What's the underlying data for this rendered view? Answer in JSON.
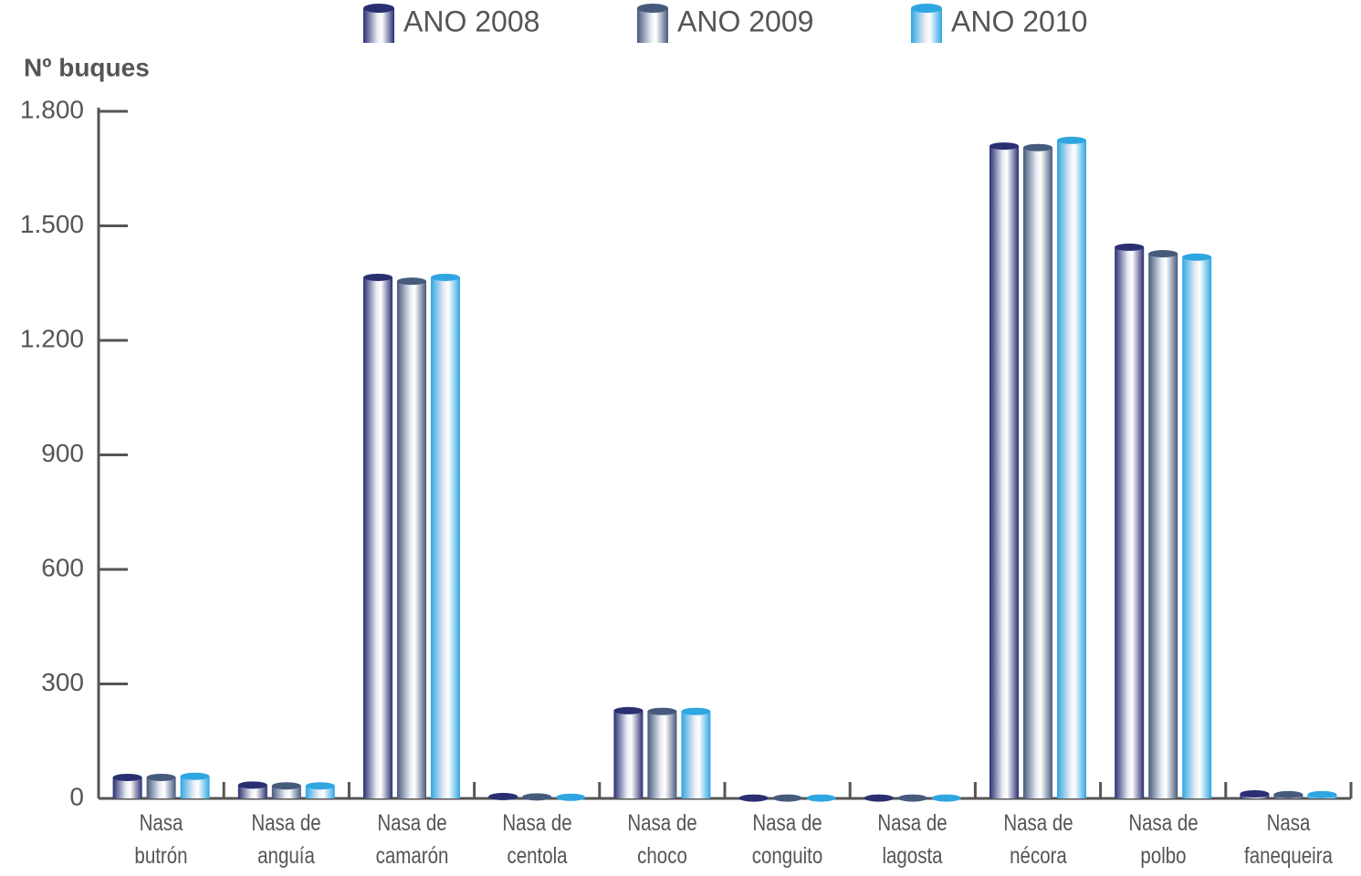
{
  "chart_data": {
    "type": "bar",
    "y_label": "Nº buques",
    "categories": [
      "Nasa\nbutrón",
      "Nasa de\nanguía",
      "Nasa de\ncamarón",
      "Nasa de\ncentola",
      "Nasa de\nchoco",
      "Nasa de\nconguito",
      "Nasa de\nlagosta",
      "Nasa de\nnécora",
      "Nasa de\npolbo",
      "Nasa\nfanequeira"
    ],
    "series": [
      {
        "name": "ANO 2008",
        "color": "#2a2f72",
        "values": [
          55,
          35,
          1365,
          5,
          230,
          1,
          1,
          1709,
          1444,
          12
        ]
      },
      {
        "name": "ANO 2009",
        "color": "#465a7c",
        "values": [
          55,
          33,
          1355,
          4,
          228,
          1,
          1,
          1705,
          1427,
          10
        ]
      },
      {
        "name": "ANO 2010",
        "color": "#2fa6e2",
        "values": [
          58,
          33,
          1365,
          3,
          228,
          1,
          1,
          1724,
          1418,
          10
        ]
      }
    ],
    "ylim": [
      0,
      1800
    ],
    "yticks": [
      0,
      300,
      600,
      900,
      {
        "value": 1200,
        "label": "1.200"
      },
      {
        "value": 1500,
        "label": "1.500"
      },
      {
        "value": 1800,
        "label": "1.800"
      }
    ]
  }
}
